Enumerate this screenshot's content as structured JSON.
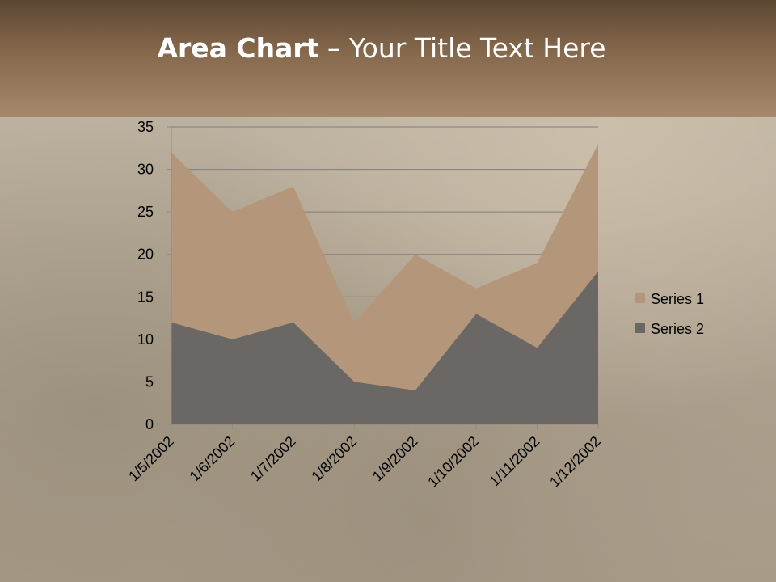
{
  "slide": {
    "title_bold": "Area Chart",
    "title_rest": " – Your Title Text Here"
  },
  "colors": {
    "series1": "#b4977b",
    "series2": "#6a6764",
    "grid": "#7f7f7f",
    "axis": "#8a8a8a"
  },
  "chart_data": {
    "type": "area",
    "categories": [
      "1/5/2002",
      "1/6/2002",
      "1/7/2002",
      "1/8/2002",
      "1/9/2002",
      "1/10/2002",
      "1/11/2002",
      "1/12/2002"
    ],
    "series": [
      {
        "name": "Series 1",
        "values": [
          32,
          25,
          28,
          12,
          20,
          16,
          19,
          33
        ]
      },
      {
        "name": "Series 2",
        "values": [
          12,
          10,
          12,
          5,
          4,
          13,
          9,
          18
        ]
      }
    ],
    "ylim": [
      0,
      35
    ],
    "yticks": [
      0,
      5,
      10,
      15,
      20,
      25,
      30,
      35
    ],
    "grid": true,
    "legend": "right",
    "title": "",
    "xlabel": "",
    "ylabel": ""
  }
}
